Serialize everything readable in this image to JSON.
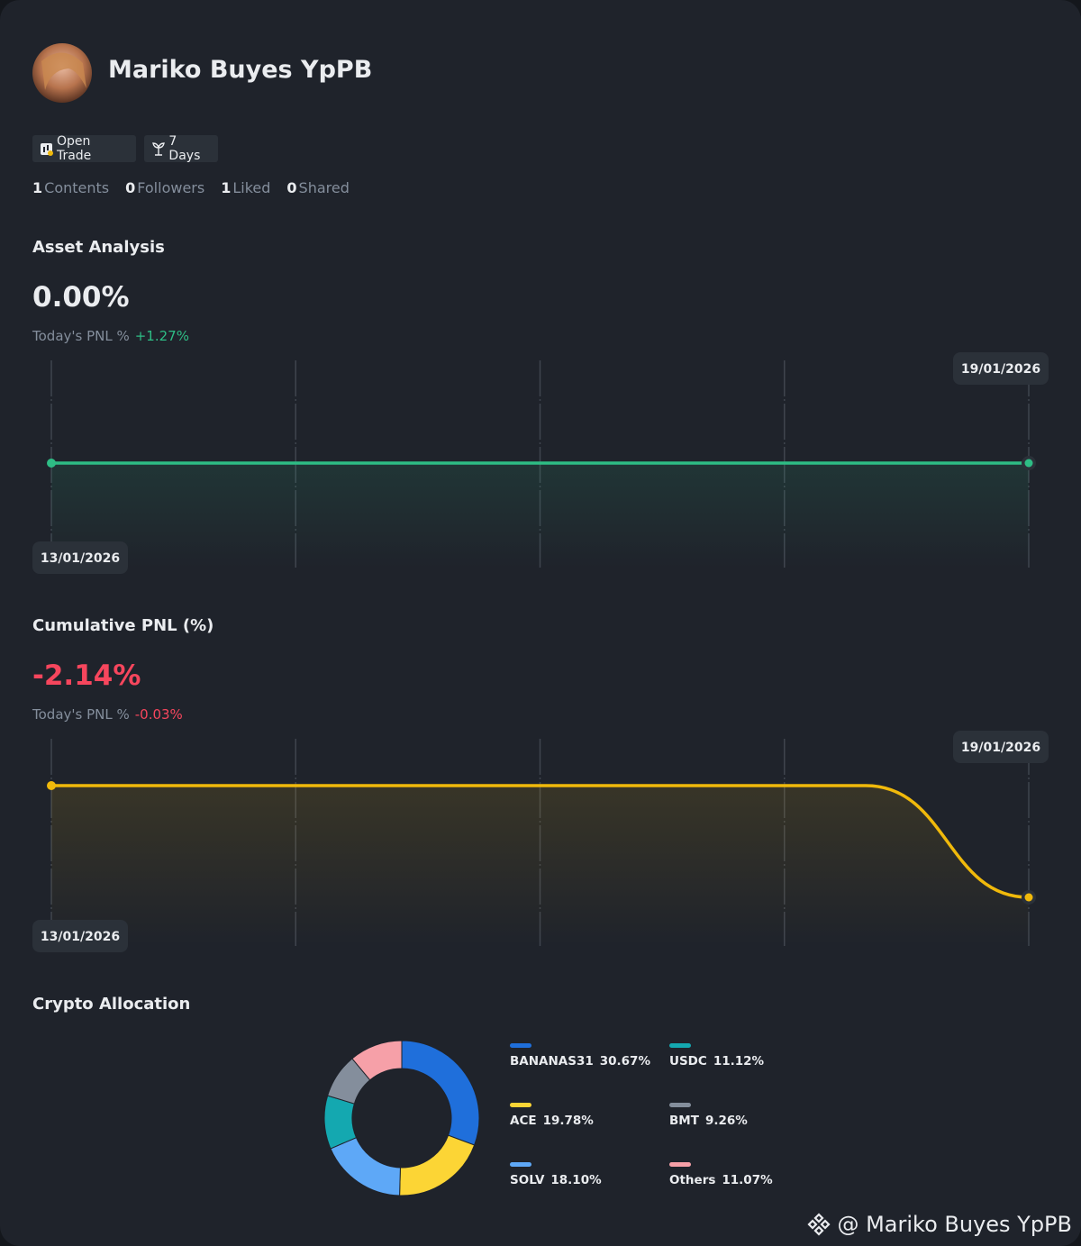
{
  "profile": {
    "name": "Mariko Buyes YpPB",
    "badges": [
      "Open Trade",
      "7 Days"
    ],
    "stats": [
      {
        "value": 1,
        "label": "Contents"
      },
      {
        "value": 0,
        "label": "Followers"
      },
      {
        "value": 1,
        "label": "Liked"
      },
      {
        "value": 0,
        "label": "Shared"
      }
    ]
  },
  "asset_analysis": {
    "title": "Asset Analysis",
    "value": "0.00%",
    "today_label": "Today's PNL %",
    "today_change": "+1.27%",
    "chart": {
      "type": "line",
      "categories": [
        "13/01/2026",
        null,
        null,
        null,
        null,
        null,
        "19/01/2026"
      ],
      "values": [
        0,
        0,
        0,
        0,
        0,
        0,
        0
      ],
      "color": "#2ebd85"
    }
  },
  "cumulative_pnl": {
    "title": "Cumulative PNL (%)",
    "value": "-2.14%",
    "today_label": "Today's PNL %",
    "today_change": "-0.03%",
    "chart": {
      "type": "line",
      "categories": [
        "13/01/2026",
        null,
        null,
        null,
        null,
        null,
        "19/01/2026"
      ],
      "values": [
        0,
        0,
        0,
        0,
        0,
        0,
        -2.14
      ],
      "color": "#f0b90b"
    }
  },
  "crypto_allocation": {
    "title": "Crypto Allocation",
    "chart": {
      "type": "donut",
      "categories": [
        "BANANAS31",
        "ACE",
        "SOLV",
        "USDC",
        "BMT",
        "Others"
      ],
      "values": [
        30.67,
        19.78,
        18.1,
        11.12,
        9.26,
        11.07
      ],
      "value_labels": [
        "30.67%",
        "19.78%",
        "18.10%",
        "11.12%",
        "9.26%",
        "11.07%"
      ],
      "colors": [
        "#1f6fdb",
        "#fcd535",
        "#5ea8f7",
        "#14a8b0",
        "#848e9c",
        "#f6a0a8"
      ]
    }
  },
  "watermark": "@ Mariko Buyes YpPB"
}
